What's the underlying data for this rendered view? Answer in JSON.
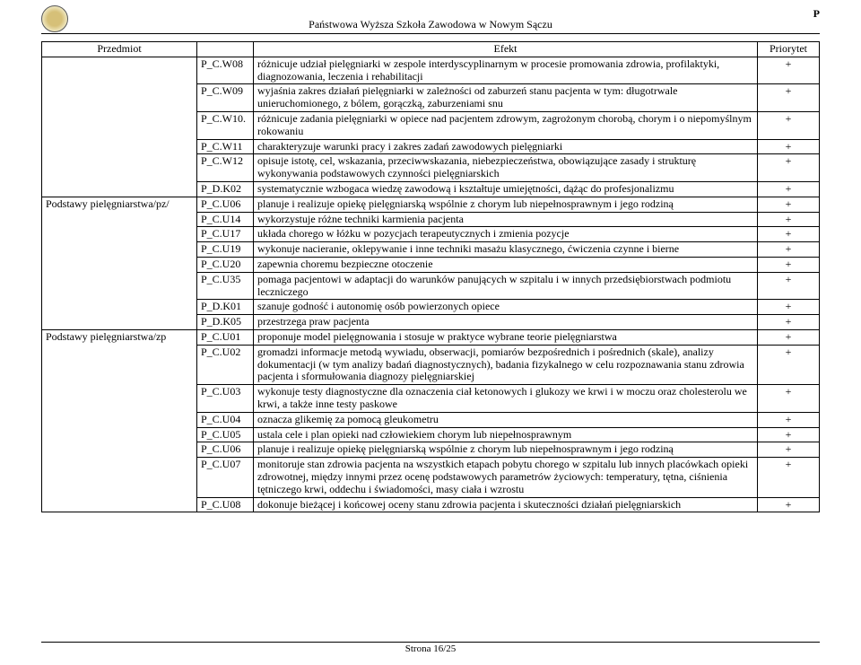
{
  "header": "Państwowa Wyższa Szkoła Zawodowa w Nowym Sączu",
  "header_right": "P",
  "footer": "Strona 16/25",
  "cols": [
    "Przedmiot",
    "",
    "Efekt",
    "Priorytet"
  ],
  "subjects": [
    {
      "name": "",
      "rows": [
        {
          "code": "P_C.W08",
          "txt": "różnicuje udział pielęgniarki w zespole interdyscyplinarnym w procesie promowania zdrowia, profilaktyki, diagnozowania, leczenia i rehabilitacji",
          "pr": "+"
        },
        {
          "code": "P_C.W09",
          "txt": "wyjaśnia zakres działań pielęgniarki w zależności od zaburzeń stanu pacjenta w tym: długotrwale unieruchomionego, z bólem, gorączką, zaburzeniami snu",
          "pr": "+"
        },
        {
          "code": "P_C.W10.",
          "txt": "różnicuje zadania pielęgniarki w opiece nad pacjentem zdrowym, zagrożonym chorobą, chorym i o niepomyślnym rokowaniu",
          "pr": "+"
        },
        {
          "code": "P_C.W11",
          "txt": "charakteryzuje warunki pracy i zakres zadań zawodowych pielęgniarki",
          "pr": "+"
        },
        {
          "code": "P_C.W12",
          "txt": "opisuje istotę, cel, wskazania, przeciwwskazania, niebezpieczeństwa, obowiązujące zasady i strukturę wykonywania podstawowych czynności pielęgniarskich",
          "pr": "+"
        },
        {
          "code": "P_D.K02",
          "txt": "systematycznie wzbogaca wiedzę zawodową i kształtuje umiejętności, dążąc do profesjonalizmu",
          "pr": "+"
        }
      ]
    },
    {
      "name": "Podstawy pielęgniarstwa/pz/",
      "rows": [
        {
          "code": "P_C.U06",
          "txt": "planuje i realizuje opiekę pielęgniarską wspólnie z chorym lub niepełnosprawnym i jego rodziną",
          "pr": "+"
        },
        {
          "code": "P_C.U14",
          "txt": "wykorzystuje różne techniki karmienia pacjenta",
          "pr": "+"
        },
        {
          "code": "P_C.U17",
          "txt": "układa chorego w łóżku w pozycjach terapeutycznych i zmienia pozycje",
          "pr": "+"
        },
        {
          "code": "P_C.U19",
          "txt": "wykonuje nacieranie, oklepywanie i inne techniki masażu klasycznego, ćwiczenia czynne i bierne",
          "pr": "+"
        },
        {
          "code": "P_C.U20",
          "txt": "zapewnia choremu bezpieczne otoczenie",
          "pr": "+"
        },
        {
          "code": "P_C.U35",
          "txt": "pomaga pacjentowi w adaptacji do warunków panujących w szpitalu i w innych przedsiębiorstwach podmiotu leczniczego",
          "pr": "+"
        },
        {
          "code": "P_D.K01",
          "txt": "szanuje godność i autonomię osób powierzonych opiece",
          "pr": "+"
        },
        {
          "code": "P_D.K05",
          "txt": "przestrzega praw pacjenta",
          "pr": "+"
        }
      ]
    },
    {
      "name": "Podstawy pielęgniarstwa/zp",
      "rows": [
        {
          "code": "P_C.U01",
          "txt": "proponuje model pielęgnowania i stosuje w praktyce wybrane teorie pielęgniarstwa",
          "pr": "+"
        },
        {
          "code": "P_C.U02",
          "txt": "gromadzi informacje metodą wywiadu, obserwacji, pomiarów bezpośrednich i pośrednich (skale), analizy dokumentacji (w tym analizy badań diagnostycznych), badania fizykalnego w celu rozpoznawania stanu zdrowia pacjenta i sformułowania diagnozy pielęgniarskiej",
          "pr": "+"
        },
        {
          "code": "P_C.U03",
          "txt": "wykonuje testy diagnostyczne dla oznaczenia ciał ketonowych i glukozy we krwi i w moczu oraz cholesterolu we krwi, a także inne testy paskowe",
          "pr": "+"
        },
        {
          "code": "P_C.U04",
          "txt": "oznacza glikemię za pomocą gleukometru",
          "pr": "+"
        },
        {
          "code": "P_C.U05",
          "txt": "ustala cele i plan opieki nad człowiekiem chorym lub niepełnosprawnym",
          "pr": "+"
        },
        {
          "code": "P_C.U06",
          "txt": "planuje i realizuje opiekę pielęgniarską wspólnie z chorym lub niepełnosprawnym i jego rodziną",
          "pr": "+"
        },
        {
          "code": "P_C.U07",
          "txt": "monitoruje stan zdrowia pacjenta na wszystkich etapach pobytu chorego w szpitalu lub innych placówkach opieki zdrowotnej, między innymi przez ocenę podstawowych parametrów życiowych: temperatury, tętna, ciśnienia tętniczego krwi, oddechu i świadomości, masy ciała i wzrostu",
          "pr": "+"
        },
        {
          "code": "P_C.U08",
          "txt": "dokonuje bieżącej i końcowej oceny stanu zdrowia pacjenta i skuteczności działań pielęgniarskich",
          "pr": "+"
        }
      ]
    }
  ]
}
